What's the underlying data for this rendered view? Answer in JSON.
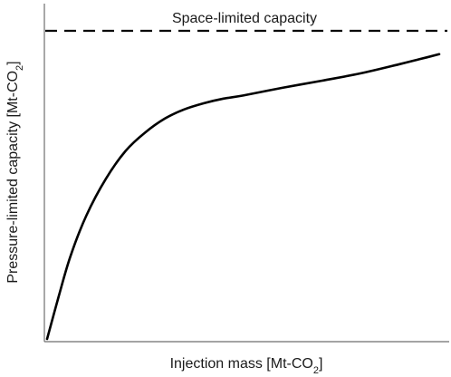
{
  "chart_data": {
    "type": "line",
    "title": "",
    "xlabel_main": "Injection mass [Mt-CO",
    "xlabel_sub": "2",
    "xlabel_end": "]",
    "ylabel_main": "Pressure-limited capacity [Mt-CO",
    "ylabel_sub": "2",
    "ylabel_end": "]",
    "xlim": [
      0,
      100
    ],
    "ylim": [
      0,
      100
    ],
    "ticks_shown": false,
    "grid": false,
    "series": [
      {
        "style": "solid",
        "x": [
          0,
          3,
          6,
          10,
          15,
          20,
          25,
          30,
          35,
          40,
          45,
          50,
          60,
          70,
          80,
          90,
          95,
          100
        ],
        "y": [
          0,
          14,
          27,
          40,
          52,
          61,
          67,
          71.5,
          74.5,
          76.5,
          78,
          79,
          81.5,
          83.8,
          86.2,
          89.2,
          90.8,
          92.4
        ]
      }
    ],
    "reference_lines": [
      {
        "orientation": "horizontal",
        "y": 100,
        "style": "dashed",
        "label": "Space-limited capacity"
      }
    ]
  }
}
